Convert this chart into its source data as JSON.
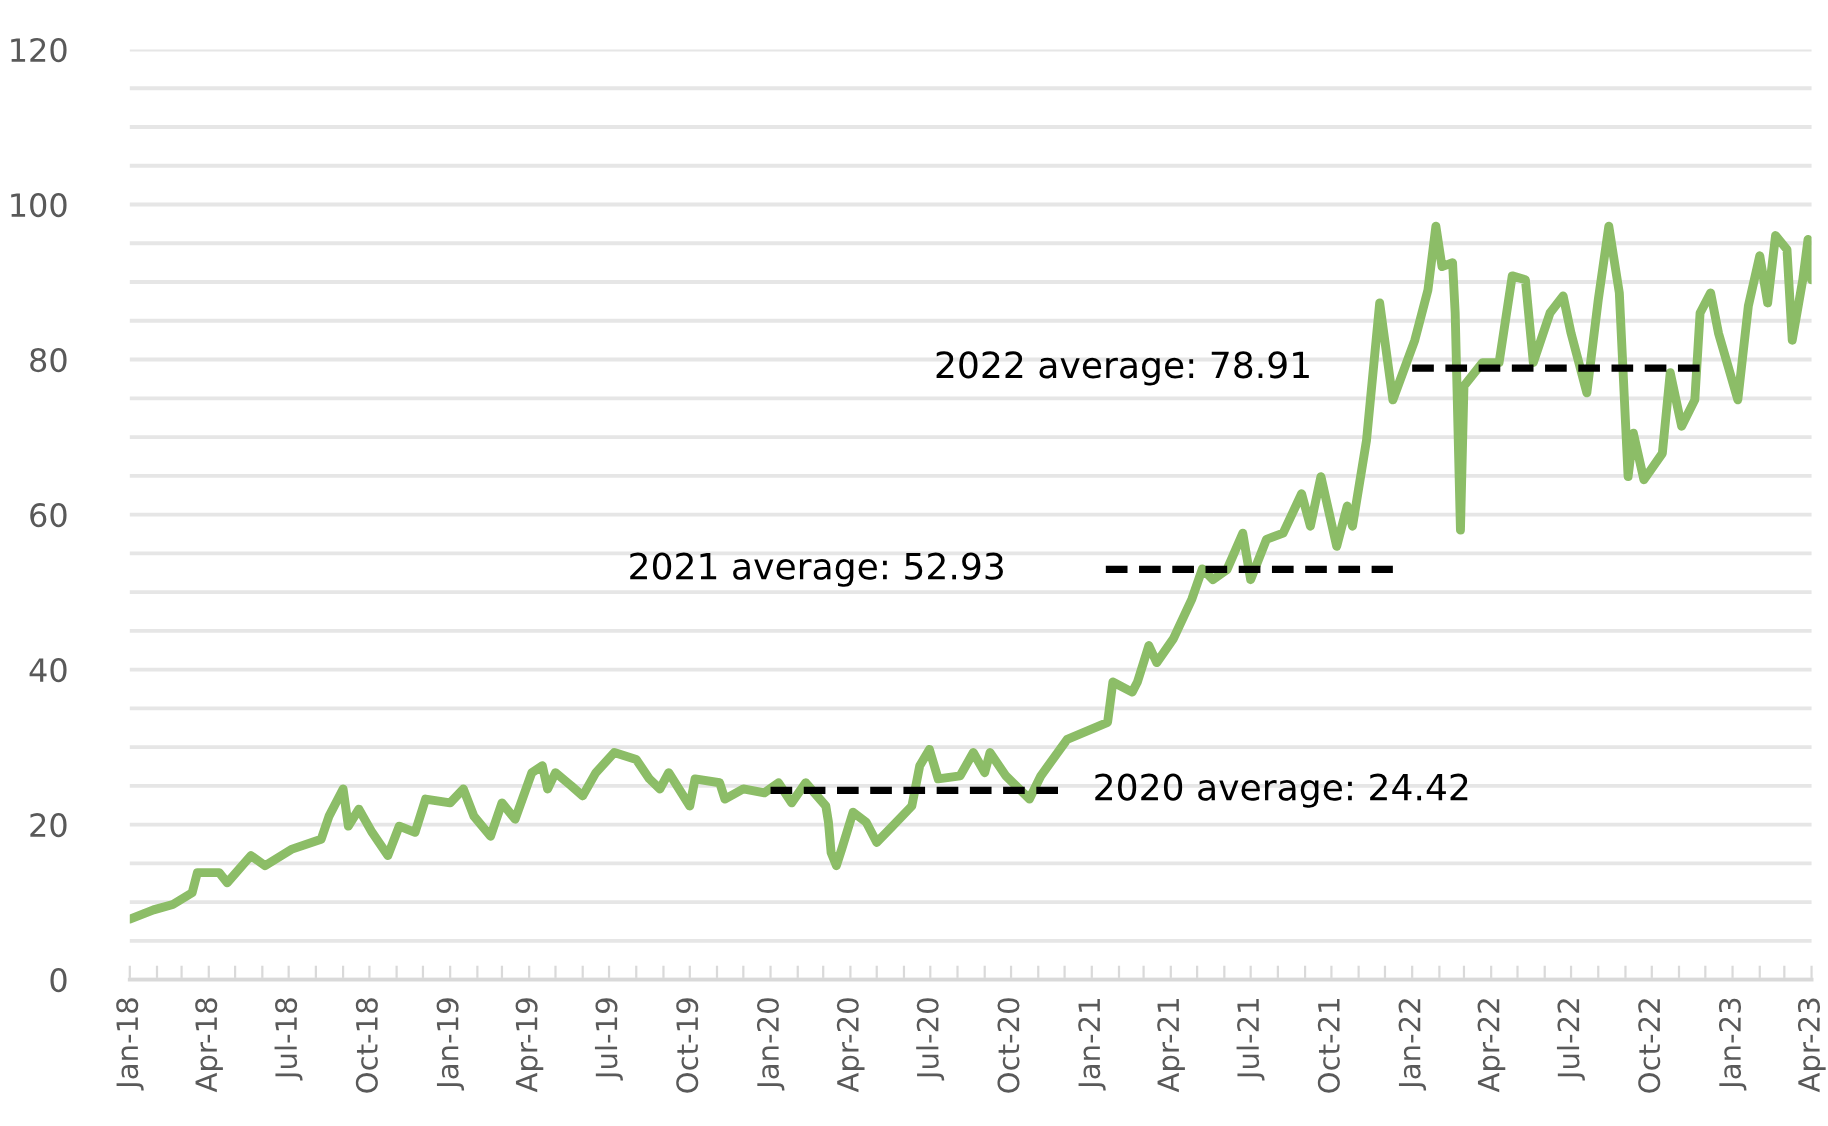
{
  "chart_data": {
    "type": "line",
    "x": [
      "2018-01-01",
      "2018-01-28",
      "2018-02-19",
      "2018-03-13",
      "2018-03-19",
      "2018-04-13",
      "2018-04-22",
      "2018-05-19",
      "2018-06-04",
      "2018-07-04",
      "2018-08-07",
      "2018-08-16",
      "2018-09-01",
      "2018-09-07",
      "2018-09-19",
      "2018-10-04",
      "2018-10-22",
      "2018-11-04",
      "2018-11-22",
      "2018-12-04",
      "2019-01-01",
      "2019-01-16",
      "2019-01-28",
      "2019-02-16",
      "2019-03-01",
      "2019-03-16",
      "2019-04-04",
      "2019-04-16",
      "2019-04-22",
      "2019-05-01",
      "2019-05-19",
      "2019-06-01",
      "2019-06-16",
      "2019-07-07",
      "2019-08-01",
      "2019-08-16",
      "2019-08-28",
      "2019-09-07",
      "2019-10-01",
      "2019-10-07",
      "2019-11-04",
      "2019-11-10",
      "2019-12-01",
      "2019-12-25",
      "2020-01-10",
      "2020-01-25",
      "2020-02-10",
      "2020-03-04",
      "2020-03-07",
      "2020-03-10",
      "2020-03-16",
      "2020-03-22",
      "2020-04-04",
      "2020-04-19",
      "2020-05-01",
      "2020-05-19",
      "2020-06-10",
      "2020-06-19",
      "2020-06-30",
      "2020-07-10",
      "2020-08-04",
      "2020-08-19",
      "2020-09-01",
      "2020-09-07",
      "2020-09-25",
      "2020-10-22",
      "2020-11-04",
      "2020-12-04",
      "2021-01-19",
      "2021-01-25",
      "2021-02-16",
      "2021-02-22",
      "2021-03-07",
      "2021-03-16",
      "2021-04-04",
      "2021-04-25",
      "2021-05-07",
      "2021-05-19",
      "2021-06-04",
      "2021-06-22",
      "2021-07-01",
      "2021-07-19",
      "2021-08-07",
      "2021-08-28",
      "2021-09-07",
      "2021-09-19",
      "2021-10-07",
      "2021-10-19",
      "2021-10-25",
      "2021-11-10",
      "2021-11-25",
      "2021-12-10",
      "2022-01-04",
      "2022-01-19",
      "2022-01-28",
      "2022-02-04",
      "2022-02-16",
      "2022-02-19",
      "2022-02-25",
      "2022-03-01",
      "2022-03-22",
      "2022-04-10",
      "2022-04-25",
      "2022-05-10",
      "2022-05-19",
      "2022-06-07",
      "2022-06-22",
      "2022-07-01",
      "2022-07-19",
      "2022-08-01",
      "2022-08-13",
      "2022-08-25",
      "2022-09-04",
      "2022-09-10",
      "2022-09-22",
      "2022-10-13",
      "2022-10-22",
      "2022-11-04",
      "2022-11-19",
      "2022-11-25",
      "2022-12-07",
      "2022-12-16",
      "2023-01-07",
      "2023-01-19",
      "2023-02-01",
      "2023-02-10",
      "2023-02-19",
      "2023-03-04",
      "2023-03-10",
      "2023-03-22",
      "2023-03-28",
      "2023-04-01"
    ],
    "series": [
      {
        "color": "#8cbd67",
        "values": [
          7.8,
          9,
          9.7,
          11.2,
          13.8,
          13.8,
          12.5,
          16,
          14.7,
          16.8,
          18.1,
          21.1,
          24.6,
          19.8,
          22,
          19,
          16,
          19.8,
          19,
          23.3,
          22.8,
          24.6,
          21.1,
          18.5,
          22.8,
          20.7,
          26.7,
          27.6,
          24.6,
          26.7,
          25,
          23.7,
          26.7,
          29.3,
          28.4,
          25.9,
          24.6,
          26.7,
          22.4,
          25.9,
          25.4,
          23.3,
          24.6,
          24.1,
          25.4,
          22.8,
          25.4,
          22.4,
          20.3,
          16.4,
          14.7,
          16.8,
          21.6,
          20.3,
          17.7,
          19.8,
          22.4,
          27.6,
          29.7,
          25.9,
          26.3,
          29.3,
          26.7,
          29.3,
          26.3,
          23.3,
          26.3,
          31,
          33.2,
          38.4,
          37.1,
          38.4,
          43.1,
          40.9,
          44,
          49.1,
          53,
          51.6,
          52.9,
          57.6,
          51.6,
          56.8,
          57.6,
          62.7,
          58.5,
          64.9,
          55.9,
          61.1,
          58.5,
          69.6,
          87.3,
          74.8,
          82.5,
          89,
          97.2,
          92,
          92.5,
          86,
          58,
          76.6,
          79.6,
          79.6,
          90.8,
          90.3,
          79.6,
          86,
          88.2,
          83.4,
          75.7,
          87.7,
          97.2,
          88.6,
          64.9,
          70.5,
          64.5,
          67.9,
          78.3,
          71.4,
          74.8,
          86,
          88.6,
          83.4,
          74.8,
          86.9,
          93.4,
          87.3,
          96,
          94.2,
          82.5,
          90.3,
          95.5,
          90.3
        ]
      },
      {
        "color": "#000000",
        "line_style": "dashed",
        "x": [
          "2020-01-01",
          "2020-11-25"
        ],
        "values": [
          24.42,
          24.42
        ]
      },
      {
        "color": "#000000",
        "line_style": "dashed",
        "x": [
          "2021-01-17",
          "2021-12-10"
        ],
        "values": [
          52.93,
          52.93
        ]
      },
      {
        "color": "#000000",
        "line_style": "dashed",
        "x": [
          "2022-01-01",
          "2022-11-25"
        ],
        "values": [
          78.91,
          78.91
        ]
      }
    ],
    "annotations": [
      {
        "text": "2020 average: 24.42",
        "x": "2020-11-25",
        "y": 24.42
      },
      {
        "text": "2021 average: 52.93",
        "x": "2021-01-17",
        "y": 52.93
      },
      {
        "text": "2022 average: 78.91",
        "x": "2022-01-01",
        "y": 78.91
      }
    ],
    "xlim": [
      "2018-01-01",
      "2023-04-01"
    ],
    "xticks": [
      {
        "value": "2018-01-01",
        "label": "Jan-18"
      },
      {
        "value": "2018-02-01",
        "label": null
      },
      {
        "value": "2018-03-01",
        "label": null
      },
      {
        "value": "2018-04-01",
        "label": "Apr-18"
      },
      {
        "value": "2018-05-01",
        "label": null
      },
      {
        "value": "2018-06-01",
        "label": null
      },
      {
        "value": "2018-07-01",
        "label": "Jul-18"
      },
      {
        "value": "2018-08-01",
        "label": null
      },
      {
        "value": "2018-09-01",
        "label": null
      },
      {
        "value": "2018-10-01",
        "label": "Oct-18"
      },
      {
        "value": "2018-11-01",
        "label": null
      },
      {
        "value": "2018-12-01",
        "label": null
      },
      {
        "value": "2019-01-01",
        "label": "Jan-19"
      },
      {
        "value": "2019-02-01",
        "label": null
      },
      {
        "value": "2019-03-01",
        "label": null
      },
      {
        "value": "2019-04-01",
        "label": "Apr-19"
      },
      {
        "value": "2019-05-01",
        "label": null
      },
      {
        "value": "2019-06-01",
        "label": null
      },
      {
        "value": "2019-07-01",
        "label": "Jul-19"
      },
      {
        "value": "2019-08-01",
        "label": null
      },
      {
        "value": "2019-09-01",
        "label": null
      },
      {
        "value": "2019-10-01",
        "label": "Oct-19"
      },
      {
        "value": "2019-11-01",
        "label": null
      },
      {
        "value": "2019-12-01",
        "label": null
      },
      {
        "value": "2020-01-01",
        "label": "Jan-20"
      },
      {
        "value": "2020-02-01",
        "label": null
      },
      {
        "value": "2020-03-01",
        "label": null
      },
      {
        "value": "2020-04-01",
        "label": "Apr-20"
      },
      {
        "value": "2020-05-01",
        "label": null
      },
      {
        "value": "2020-06-01",
        "label": null
      },
      {
        "value": "2020-07-01",
        "label": "Jul-20"
      },
      {
        "value": "2020-08-01",
        "label": null
      },
      {
        "value": "2020-09-01",
        "label": null
      },
      {
        "value": "2020-10-01",
        "label": "Oct-20"
      },
      {
        "value": "2020-11-01",
        "label": null
      },
      {
        "value": "2020-12-01",
        "label": null
      },
      {
        "value": "2021-01-01",
        "label": "Jan-21"
      },
      {
        "value": "2021-02-01",
        "label": null
      },
      {
        "value": "2021-03-01",
        "label": null
      },
      {
        "value": "2021-04-01",
        "label": "Apr-21"
      },
      {
        "value": "2021-05-01",
        "label": null
      },
      {
        "value": "2021-06-01",
        "label": null
      },
      {
        "value": "2021-07-01",
        "label": "Jul-21"
      },
      {
        "value": "2021-08-01",
        "label": null
      },
      {
        "value": "2021-09-01",
        "label": null
      },
      {
        "value": "2021-10-01",
        "label": "Oct-21"
      },
      {
        "value": "2021-11-01",
        "label": null
      },
      {
        "value": "2021-12-01",
        "label": null
      },
      {
        "value": "2022-01-01",
        "label": "Jan-22"
      },
      {
        "value": "2022-02-01",
        "label": null
      },
      {
        "value": "2022-03-01",
        "label": null
      },
      {
        "value": "2022-04-01",
        "label": "Apr-22"
      },
      {
        "value": "2022-05-01",
        "label": null
      },
      {
        "value": "2022-06-01",
        "label": null
      },
      {
        "value": "2022-07-01",
        "label": "Jul-22"
      },
      {
        "value": "2022-08-01",
        "label": null
      },
      {
        "value": "2022-09-01",
        "label": null
      },
      {
        "value": "2022-10-01",
        "label": "Oct-22"
      },
      {
        "value": "2022-11-01",
        "label": null
      },
      {
        "value": "2022-12-01",
        "label": null
      },
      {
        "value": "2023-01-01",
        "label": "Jan-23"
      },
      {
        "value": "2023-02-01",
        "label": null
      },
      {
        "value": "2023-03-01",
        "label": null
      },
      {
        "value": "2023-04-01",
        "label": "Apr-23"
      }
    ],
    "ylim": [
      0,
      120
    ],
    "yticks": [
      0,
      {
        "value": 5,
        "label": null
      },
      {
        "value": 10,
        "label": null
      },
      {
        "value": 15,
        "label": null
      },
      20,
      {
        "value": 25,
        "label": null
      },
      {
        "value": 30,
        "label": null
      },
      {
        "value": 35,
        "label": null
      },
      40,
      {
        "value": 45,
        "label": null
      },
      {
        "value": 50,
        "label": null
      },
      {
        "value": 55,
        "label": null
      },
      60,
      {
        "value": 65,
        "label": null
      },
      {
        "value": 70,
        "label": null
      },
      {
        "value": 75,
        "label": null
      },
      80,
      {
        "value": 85,
        "label": null
      },
      {
        "value": 90,
        "label": null
      },
      {
        "value": 95,
        "label": null
      },
      100,
      {
        "value": 105,
        "label": null
      },
      {
        "value": 110,
        "label": null
      },
      {
        "value": 115,
        "label": null
      },
      120
    ],
    "grid": "y",
    "legend": false
  }
}
